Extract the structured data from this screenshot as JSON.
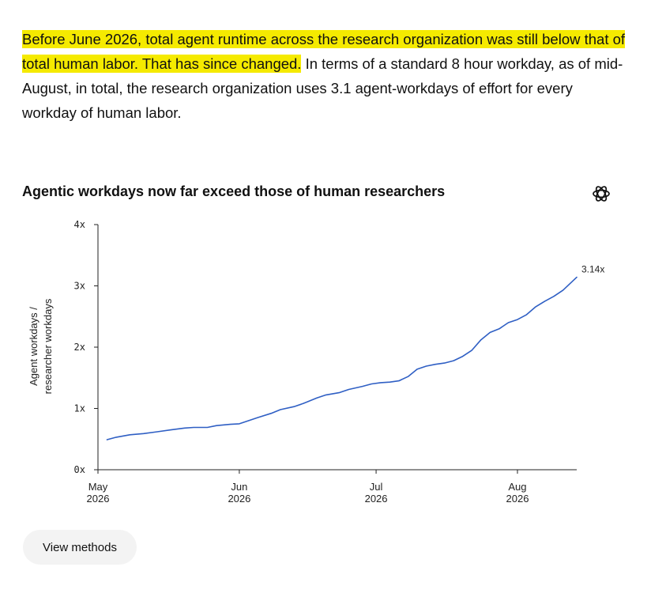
{
  "intro": {
    "highlighted": "Before June 2026, total agent runtime across the research organization was still below that of total human labor. That has since changed.",
    "rest": " In terms of a standard 8 hour workday, as of mid-August, in total, the research organization uses 3.1 agent-workdays of effort for every workday of human labor."
  },
  "highlight_color": "#f5ea00",
  "line_color": "#2f5fc4",
  "brand_icon": "openai-logo-icon",
  "methods_button": {
    "label": "View methods"
  },
  "chart_data": {
    "type": "line",
    "title": "Agentic workdays now far exceed those of human researchers",
    "ylabel_lines": [
      "Agent workdays /",
      "researcher workdays"
    ],
    "xlabel": "",
    "ylim": [
      0,
      4
    ],
    "xlim": [
      "2026-05-01",
      "2026-08-14"
    ],
    "y_ticks": [
      {
        "value": 0,
        "label": "0x"
      },
      {
        "value": 1,
        "label": "1x"
      },
      {
        "value": 2,
        "label": "2x"
      },
      {
        "value": 3,
        "label": "3x"
      },
      {
        "value": 4,
        "label": "4x"
      }
    ],
    "x_ticks": [
      {
        "date": "2026-05-01",
        "month": "May",
        "year": "2026"
      },
      {
        "date": "2026-06-01",
        "month": "Jun",
        "year": "2026"
      },
      {
        "date": "2026-07-01",
        "month": "Jul",
        "year": "2026"
      },
      {
        "date": "2026-08-01",
        "month": "Aug",
        "year": "2026"
      }
    ],
    "grid": false,
    "end_label": "3.14x",
    "series": [
      {
        "x": [
          "2026-05-03",
          "2026-05-05",
          "2026-05-08",
          "2026-05-11",
          "2026-05-14",
          "2026-05-17",
          "2026-05-20",
          "2026-05-22",
          "2026-05-25",
          "2026-05-27",
          "2026-05-30",
          "2026-06-01",
          "2026-06-03",
          "2026-06-05",
          "2026-06-08",
          "2026-06-10",
          "2026-06-13",
          "2026-06-15",
          "2026-06-18",
          "2026-06-20",
          "2026-06-23",
          "2026-06-25",
          "2026-06-28",
          "2026-06-30",
          "2026-07-02",
          "2026-07-04",
          "2026-07-06",
          "2026-07-08",
          "2026-07-10",
          "2026-07-12",
          "2026-07-14",
          "2026-07-16",
          "2026-07-18",
          "2026-07-20",
          "2026-07-22",
          "2026-07-24",
          "2026-07-26",
          "2026-07-28",
          "2026-07-30",
          "2026-08-01",
          "2026-08-03",
          "2026-08-05",
          "2026-08-07",
          "2026-08-09",
          "2026-08-11",
          "2026-08-14"
        ],
        "values": [
          0.49,
          0.53,
          0.57,
          0.59,
          0.62,
          0.65,
          0.68,
          0.69,
          0.69,
          0.72,
          0.74,
          0.75,
          0.8,
          0.85,
          0.92,
          0.98,
          1.03,
          1.08,
          1.17,
          1.22,
          1.26,
          1.31,
          1.36,
          1.4,
          1.42,
          1.43,
          1.45,
          1.52,
          1.64,
          1.69,
          1.72,
          1.74,
          1.78,
          1.85,
          1.95,
          2.12,
          2.24,
          2.3,
          2.4,
          2.45,
          2.53,
          2.66,
          2.75,
          2.83,
          2.93,
          3.14
        ]
      }
    ]
  }
}
